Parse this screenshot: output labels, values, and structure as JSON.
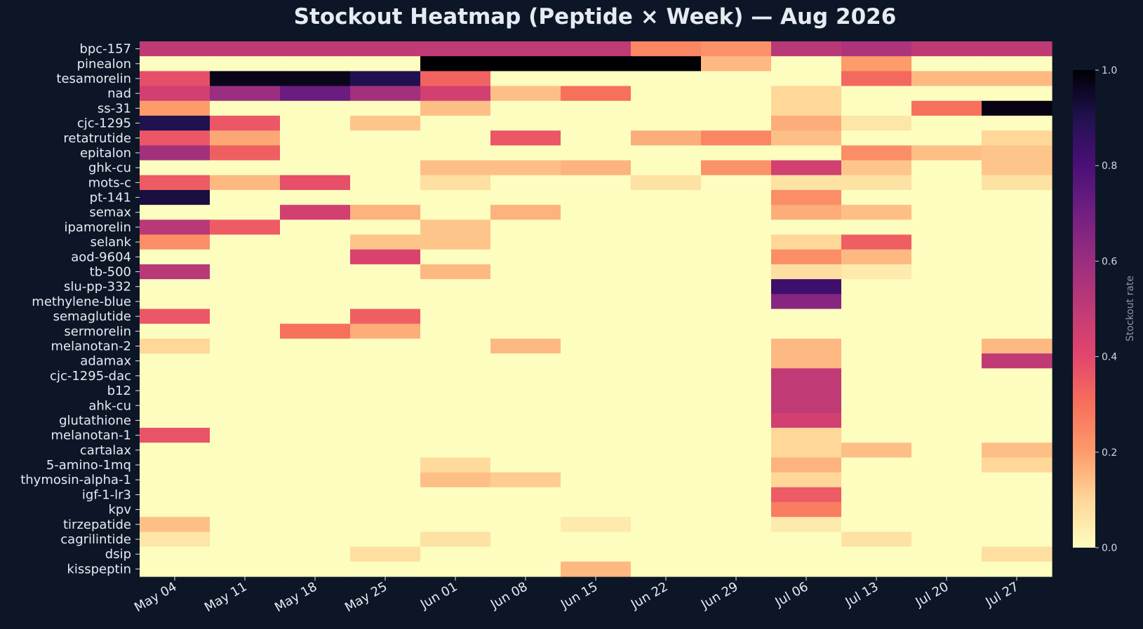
{
  "chart_data": {
    "type": "heatmap",
    "title": "Stockout Heatmap (Peptide × Week) — Aug 2026",
    "colorbar_label": "Stockout rate",
    "colorbar_range": [
      0.0,
      1.0
    ],
    "colorbar_ticks": [
      "0.0",
      "0.2",
      "0.4",
      "0.6",
      "0.8",
      "1.0"
    ],
    "colormap": "magma_r",
    "columns": [
      "May 04",
      "May 11",
      "May 18",
      "May 25",
      "Jun 01",
      "Jun 08",
      "Jun 15",
      "Jun 22",
      "Jun 29",
      "Jul 06",
      "Jul 13",
      "Jul 20",
      "Jul 27"
    ],
    "rows": [
      "bpc-157",
      "pinealon",
      "tesamorelin",
      "nad",
      "ss-31",
      "cjc-1295",
      "retatrutide",
      "epitalon",
      "ghk-cu",
      "mots-c",
      "pt-141",
      "semax",
      "ipamorelin",
      "selank",
      "aod-9604",
      "tb-500",
      "slu-pp-332",
      "methylene-blue",
      "semaglutide",
      "sermorelin",
      "melanotan-2",
      "adamax",
      "cjc-1295-dac",
      "b12",
      "ahk-cu",
      "glutathione",
      "melanotan-1",
      "cartalax",
      "5-amino-1mq",
      "thymosin-alpha-1",
      "igf-1-lr3",
      "kpv",
      "tirzepatide",
      "cagrilintide",
      "dsip",
      "kisspeptin"
    ],
    "values": [
      [
        0.5,
        0.5,
        0.5,
        0.5,
        0.5,
        0.5,
        0.5,
        0.25,
        0.22,
        0.52,
        0.55,
        0.5,
        0.5
      ],
      [
        0.0,
        0.0,
        0.0,
        0.0,
        1.0,
        1.0,
        1.0,
        1.0,
        0.15,
        0.0,
        0.2,
        0.0,
        0.0
      ],
      [
        0.38,
        0.97,
        0.97,
        0.9,
        0.33,
        0.0,
        0.0,
        0.0,
        0.0,
        0.0,
        0.32,
        0.15,
        0.15
      ],
      [
        0.45,
        0.6,
        0.72,
        0.58,
        0.45,
        0.14,
        0.3,
        0.0,
        0.0,
        0.1,
        0.0,
        0.0,
        0.0
      ],
      [
        0.2,
        0.0,
        0.0,
        0.0,
        0.14,
        0.0,
        0.0,
        0.0,
        0.0,
        0.1,
        0.0,
        0.3,
        0.98
      ],
      [
        0.9,
        0.36,
        0.0,
        0.13,
        0.0,
        0.0,
        0.0,
        0.0,
        0.0,
        0.17,
        0.06,
        0.0,
        0.0
      ],
      [
        0.36,
        0.18,
        0.0,
        0.0,
        0.0,
        0.36,
        0.0,
        0.17,
        0.25,
        0.14,
        0.0,
        0.0,
        0.1
      ],
      [
        0.58,
        0.34,
        0.0,
        0.0,
        0.0,
        0.0,
        0.0,
        0.0,
        0.0,
        0.0,
        0.23,
        0.14,
        0.13
      ],
      [
        0.0,
        0.0,
        0.0,
        0.0,
        0.14,
        0.14,
        0.16,
        0.0,
        0.22,
        0.45,
        0.13,
        0.0,
        0.13
      ],
      [
        0.35,
        0.15,
        0.38,
        0.0,
        0.08,
        0.0,
        0.0,
        0.07,
        0.0,
        0.07,
        0.07,
        0.0,
        0.07
      ],
      [
        0.92,
        0.0,
        0.0,
        0.0,
        0.0,
        0.0,
        0.0,
        0.0,
        0.0,
        0.23,
        0.0,
        0.0,
        0.0
      ],
      [
        0.0,
        0.0,
        0.45,
        0.16,
        0.0,
        0.16,
        0.0,
        0.0,
        0.0,
        0.17,
        0.14,
        0.0,
        0.0
      ],
      [
        0.52,
        0.35,
        0.0,
        0.0,
        0.13,
        0.0,
        0.0,
        0.0,
        0.0,
        0.0,
        0.0,
        0.0,
        0.0
      ],
      [
        0.23,
        0.0,
        0.0,
        0.13,
        0.13,
        0.0,
        0.0,
        0.0,
        0.0,
        0.1,
        0.34,
        0.0,
        0.0
      ],
      [
        0.0,
        0.0,
        0.0,
        0.43,
        0.0,
        0.0,
        0.0,
        0.0,
        0.0,
        0.23,
        0.15,
        0.0,
        0.0
      ],
      [
        0.52,
        0.0,
        0.0,
        0.0,
        0.15,
        0.0,
        0.0,
        0.0,
        0.0,
        0.08,
        0.05,
        0.0,
        0.0
      ],
      [
        0.0,
        0.0,
        0.0,
        0.0,
        0.0,
        0.0,
        0.0,
        0.0,
        0.0,
        0.83,
        0.0,
        0.0,
        0.0
      ],
      [
        0.0,
        0.0,
        0.0,
        0.0,
        0.0,
        0.0,
        0.0,
        0.0,
        0.0,
        0.65,
        0.0,
        0.0,
        0.0
      ],
      [
        0.36,
        0.0,
        0.0,
        0.34,
        0.0,
        0.0,
        0.0,
        0.0,
        0.0,
        0.0,
        0.0,
        0.0,
        0.0
      ],
      [
        0.0,
        0.0,
        0.3,
        0.17,
        0.0,
        0.0,
        0.0,
        0.0,
        0.0,
        0.0,
        0.0,
        0.0,
        0.0
      ],
      [
        0.1,
        0.0,
        0.0,
        0.0,
        0.0,
        0.15,
        0.0,
        0.0,
        0.0,
        0.15,
        0.0,
        0.0,
        0.15
      ],
      [
        0.0,
        0.0,
        0.0,
        0.0,
        0.0,
        0.0,
        0.0,
        0.0,
        0.0,
        0.15,
        0.0,
        0.0,
        0.5
      ],
      [
        0.0,
        0.0,
        0.0,
        0.0,
        0.0,
        0.0,
        0.0,
        0.0,
        0.0,
        0.5,
        0.0,
        0.0,
        0.0
      ],
      [
        0.0,
        0.0,
        0.0,
        0.0,
        0.0,
        0.0,
        0.0,
        0.0,
        0.0,
        0.5,
        0.0,
        0.0,
        0.0
      ],
      [
        0.0,
        0.0,
        0.0,
        0.0,
        0.0,
        0.0,
        0.0,
        0.0,
        0.0,
        0.5,
        0.0,
        0.0,
        0.0
      ],
      [
        0.0,
        0.0,
        0.0,
        0.0,
        0.0,
        0.0,
        0.0,
        0.0,
        0.0,
        0.45,
        0.0,
        0.0,
        0.0
      ],
      [
        0.37,
        0.0,
        0.0,
        0.0,
        0.0,
        0.0,
        0.0,
        0.0,
        0.0,
        0.1,
        0.0,
        0.0,
        0.0
      ],
      [
        0.0,
        0.0,
        0.0,
        0.0,
        0.0,
        0.0,
        0.0,
        0.0,
        0.0,
        0.1,
        0.14,
        0.0,
        0.14
      ],
      [
        0.0,
        0.0,
        0.0,
        0.0,
        0.09,
        0.0,
        0.0,
        0.0,
        0.0,
        0.16,
        0.0,
        0.0,
        0.1
      ],
      [
        0.0,
        0.0,
        0.0,
        0.0,
        0.14,
        0.12,
        0.0,
        0.0,
        0.0,
        0.1,
        0.0,
        0.0,
        0.0
      ],
      [
        0.0,
        0.0,
        0.0,
        0.0,
        0.0,
        0.0,
        0.0,
        0.0,
        0.0,
        0.35,
        0.0,
        0.0,
        0.0
      ],
      [
        0.0,
        0.0,
        0.0,
        0.0,
        0.0,
        0.0,
        0.0,
        0.0,
        0.0,
        0.27,
        0.0,
        0.0,
        0.0
      ],
      [
        0.14,
        0.0,
        0.0,
        0.0,
        0.0,
        0.0,
        0.05,
        0.0,
        0.0,
        0.05,
        0.0,
        0.0,
        0.0
      ],
      [
        0.06,
        0.0,
        0.0,
        0.0,
        0.07,
        0.0,
        0.0,
        0.0,
        0.0,
        0.0,
        0.07,
        0.0,
        0.0
      ],
      [
        0.0,
        0.0,
        0.0,
        0.08,
        0.0,
        0.0,
        0.0,
        0.0,
        0.0,
        0.0,
        0.0,
        0.0,
        0.08
      ],
      [
        0.0,
        0.0,
        0.0,
        0.0,
        0.0,
        0.0,
        0.15,
        0.0,
        0.0,
        0.0,
        0.0,
        0.0,
        0.0
      ]
    ]
  }
}
